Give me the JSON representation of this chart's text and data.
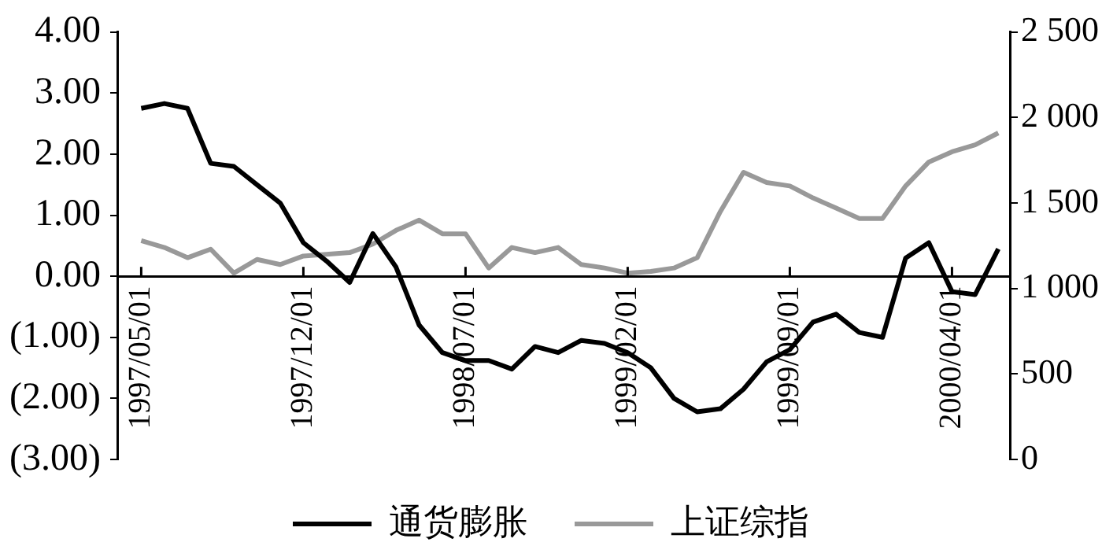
{
  "chart_data": {
    "type": "line",
    "categories": [
      "1997/05/01",
      null,
      null,
      null,
      null,
      null,
      null,
      "1997/12/01",
      null,
      null,
      null,
      null,
      null,
      null,
      "1998/07/01",
      null,
      null,
      null,
      null,
      null,
      null,
      "1999/02/01",
      null,
      null,
      null,
      null,
      null,
      null,
      "1999/09/01",
      null,
      null,
      null,
      null,
      null,
      null,
      "2000/04/01",
      null,
      null
    ],
    "series": [
      {
        "name": "通货膨胀",
        "color": "#000000",
        "values": [
          2.75,
          2.83,
          2.75,
          1.85,
          1.8,
          1.5,
          1.2,
          0.55,
          0.25,
          -0.1,
          0.7,
          0.15,
          -0.8,
          -1.25,
          -1.38,
          -1.38,
          -1.52,
          -1.15,
          -1.25,
          -1.05,
          -1.1,
          -1.25,
          -1.5,
          -2.0,
          -2.22,
          -2.17,
          -1.85,
          -1.4,
          -1.2,
          -0.75,
          -0.62,
          -0.92,
          -1.0,
          0.3,
          0.55,
          -0.25,
          -0.3,
          0.45
        ]
      },
      {
        "name": "上证综指",
        "color": "#999999",
        "axis": "y2",
        "values": [
          1280,
          1240,
          1180,
          1230,
          1090,
          1170,
          1140,
          1190,
          1200,
          1210,
          1260,
          1340,
          1400,
          1320,
          1320,
          1120,
          1240,
          1210,
          1240,
          1140,
          1120,
          1090,
          1100,
          1120,
          1180,
          1450,
          1680,
          1620,
          1600,
          1530,
          1470,
          1410,
          1410,
          1600,
          1740,
          1800,
          1840,
          1910
        ]
      }
    ],
    "ylim": [
      -3,
      4
    ],
    "yticks": [
      {
        "value": 4,
        "label": "4.00"
      },
      {
        "value": 3,
        "label": "3.00"
      },
      {
        "value": 2,
        "label": "2.00"
      },
      {
        "value": 1,
        "label": "1.00"
      },
      {
        "value": 0,
        "label": "0.00"
      },
      {
        "value": -1,
        "label": "(1.00)"
      },
      {
        "value": -2,
        "label": "(2.00)"
      },
      {
        "value": -3,
        "label": "(3.00)"
      }
    ],
    "y2lim": [
      0,
      2500
    ],
    "y2ticks": [
      {
        "value": 2500,
        "label": "2 500"
      },
      {
        "value": 2000,
        "label": "2 000"
      },
      {
        "value": 1500,
        "label": "1 500"
      },
      {
        "value": 1000,
        "label": "1 000"
      },
      {
        "value": 500,
        "label": "500"
      },
      {
        "value": 0,
        "label": "0"
      }
    ],
    "grid": false,
    "legend": "bottom",
    "marker": "none",
    "line_style": "solid"
  }
}
